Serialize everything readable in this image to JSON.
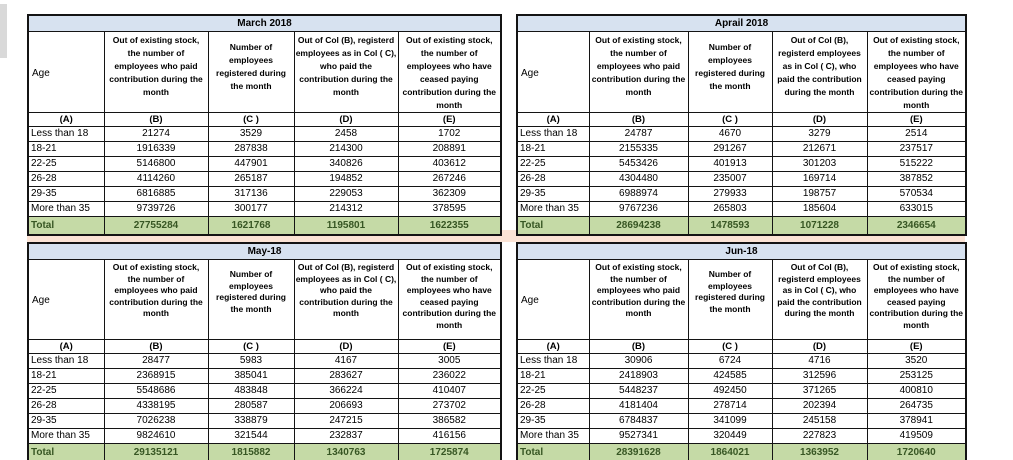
{
  "colors": {
    "title_bar": "#d7e2f0",
    "total_fill": "#c5daa6",
    "total_text": "#375623",
    "band_peach": "#fbe3d5",
    "artifact_gray": "#ececec",
    "edge_strip_gray": "#d9d9d9"
  },
  "tables": [
    {
      "title": "March 2018",
      "columns": {
        "a": "Age",
        "b": "Out of existing stock, the number of employees who paid contribution during the month",
        "c": "Number of employees registered during the month",
        "d": "Out of Col (B), registerd employees as in Col ( C), who paid the contribution during the month",
        "e": "Out of existing stock, the number of  employees who have ceased paying contribution during the month"
      },
      "letters": [
        "(A)",
        "(B)",
        "(C )",
        "(D)",
        "(E)"
      ],
      "rows": [
        [
          "Less than 18",
          "21274",
          "3529",
          "2458",
          "1702"
        ],
        [
          "18-21",
          "1916339",
          "287838",
          "214300",
          "208891"
        ],
        [
          "22-25",
          "5146800",
          "447901",
          "340826",
          "403612"
        ],
        [
          "26-28",
          "4114260",
          "265187",
          "194852",
          "267246"
        ],
        [
          "29-35",
          "6816885",
          "317136",
          "229053",
          "362309"
        ],
        [
          "More than 35",
          "9739726",
          "300177",
          "214312",
          "378595"
        ]
      ],
      "total": [
        "Total",
        "27755284",
        "1621768",
        "1195801",
        "1622355"
      ]
    },
    {
      "title": "Aprail 2018",
      "columns": {
        "a": "Age",
        "b": "Out of existing stock, the number of employees who paid contribution during the month",
        "c": "Number of employees registered during the month",
        "d": "Out of Col (B), registerd employees as in Col ( C), who paid the contribution during the month",
        "e": "Out of existing stock, the number of  employees who have ceased paying contribution during the month"
      },
      "letters": [
        "(A)",
        "(B)",
        "(C )",
        "(D)",
        "(E)"
      ],
      "rows": [
        [
          "Less than 18",
          "24787",
          "4670",
          "3279",
          "2514"
        ],
        [
          "18-21",
          "2155335",
          "291267",
          "212671",
          "237517"
        ],
        [
          "22-25",
          "5453426",
          "401913",
          "301203",
          "515222"
        ],
        [
          "26-28",
          "4304480",
          "235007",
          "169714",
          "387852"
        ],
        [
          "29-35",
          "6988974",
          "279933",
          "198757",
          "570534"
        ],
        [
          "More than 35",
          "9767236",
          "265803",
          "185604",
          "633015"
        ]
      ],
      "total": [
        "Total",
        "28694238",
        "1478593",
        "1071228",
        "2346654"
      ]
    },
    {
      "title": "May-18",
      "columns": {
        "a": "Age",
        "b": "Out of existing stock, the number of employees who paid contribution during the month",
        "c": "Number of employees registered during the month",
        "d": "Out of Col (B), registerd employees as in Col ( C), who paid the contribution during the month",
        "e": "Out of existing stock, the number of  employees who have ceased paying contribution during the month"
      },
      "letters": [
        "(A)",
        "(B)",
        "(C )",
        "(D)",
        "(E)"
      ],
      "rows": [
        [
          "Less than 18",
          "28477",
          "5983",
          "4167",
          "3005"
        ],
        [
          "18-21",
          "2368915",
          "385041",
          "283627",
          "236022"
        ],
        [
          "22-25",
          "5548686",
          "483848",
          "366224",
          "410407"
        ],
        [
          "26-28",
          "4338195",
          "280587",
          "206693",
          "273702"
        ],
        [
          "29-35",
          "7026238",
          "338879",
          "247215",
          "386582"
        ],
        [
          "More than 35",
          "9824610",
          "321544",
          "232837",
          "416156"
        ]
      ],
      "total": [
        "Total",
        "29135121",
        "1815882",
        "1340763",
        "1725874"
      ]
    },
    {
      "title": "Jun-18",
      "columns": {
        "a": "Age",
        "b": "Out of existing stock, the number of employees who paid contribution during the month",
        "c": "Number of employees registered during the month",
        "d": "Out of Col (B), registerd employees as in Col ( C), who paid the contribution during the month",
        "e": "Out of existing stock, the number of  employees who have ceased paying contribution during the month"
      },
      "letters": [
        "(A)",
        "(B)",
        "(C )",
        "(D)",
        "(E)"
      ],
      "rows": [
        [
          "Less than 18",
          "30906",
          "6724",
          "4716",
          "3520"
        ],
        [
          "18-21",
          "2418903",
          "424585",
          "312596",
          "253125"
        ],
        [
          "22-25",
          "5448237",
          "492450",
          "371265",
          "400810"
        ],
        [
          "26-28",
          "4181404",
          "278714",
          "202394",
          "264735"
        ],
        [
          "29-35",
          "6784837",
          "341099",
          "245158",
          "378941"
        ],
        [
          "More than 35",
          "9527341",
          "320449",
          "227823",
          "419509"
        ]
      ],
      "total": [
        "Total",
        "28391628",
        "1864021",
        "1363952",
        "1720640"
      ]
    }
  ]
}
